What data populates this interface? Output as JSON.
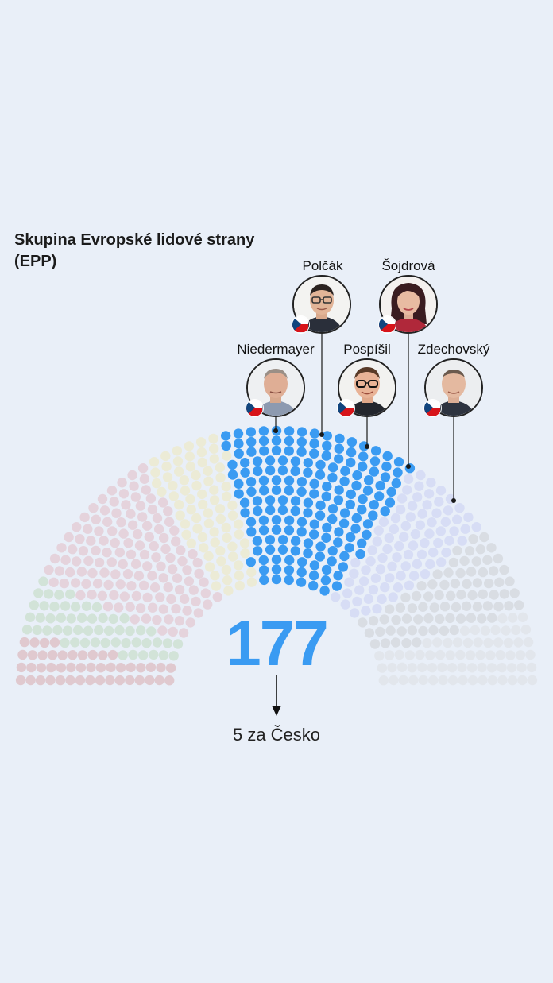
{
  "title": "Skupina Evropské lidové strany (EPP)",
  "seat_count": "177",
  "national_note": "5 za Česko",
  "colors": {
    "highlight": "#3a9bf2",
    "background": "#e9eff8",
    "connector": "#1a1a1a"
  },
  "chart_data": {
    "type": "parliament",
    "total_seats": 720,
    "highlighted_group": "Skupina Evropské lidové strany (EPP)",
    "highlighted_seats": 177,
    "groups": [
      {
        "seats": 46,
        "color": "#e0c9cf"
      },
      {
        "seats": 53,
        "color": "#d2e3d8"
      },
      {
        "seats": 136,
        "color": "#e5d3dc"
      },
      {
        "seats": 77,
        "color": "#ecebd6"
      },
      {
        "seats": 177,
        "color": "#3a9bf2",
        "highlight": true
      },
      {
        "seats": 84,
        "color": "#d7ddf5"
      },
      {
        "seats": 78,
        "color": "#d9dde3"
      },
      {
        "seats": 69,
        "color": "#e2e6ec"
      }
    ]
  },
  "meps": [
    {
      "name": "Polčák",
      "icon": "portrait-man-glasses-icon"
    },
    {
      "name": "Šojdrová",
      "icon": "portrait-woman-icon"
    },
    {
      "name": "Niedermayer",
      "icon": "portrait-man-icon"
    },
    {
      "name": "Pospíšil",
      "icon": "portrait-man-glasses-icon"
    },
    {
      "name": "Zdechovský",
      "icon": "portrait-man-icon"
    }
  ]
}
